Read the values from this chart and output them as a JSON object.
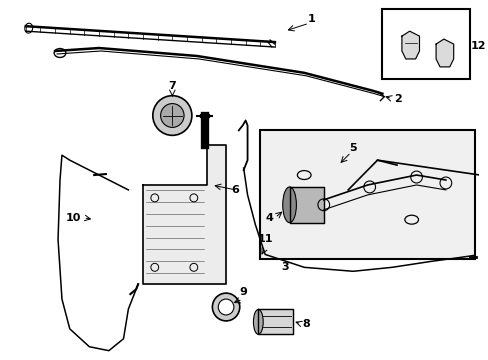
{
  "background_color": "#ffffff",
  "line_color": "#000000",
  "fig_width": 4.89,
  "fig_height": 3.6,
  "dpi": 100,
  "font_size": 8
}
